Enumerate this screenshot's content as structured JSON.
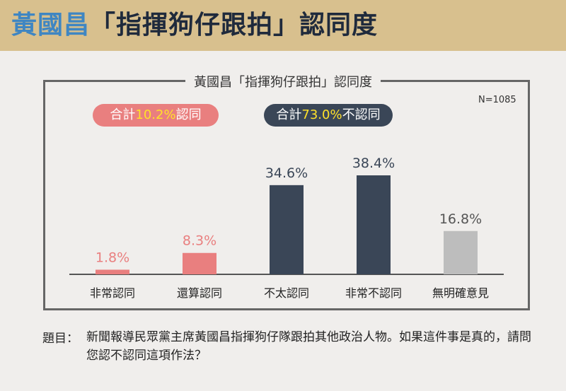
{
  "header": {
    "title_highlight": "黃國昌",
    "title_rest": "「指揮狗仔跟拍」認同度"
  },
  "chart_title": "黃國昌「指揮狗仔跟拍」認同度",
  "sample_size": "N=1085",
  "summary": {
    "agree_prefix": "合計",
    "agree_pct": "10.2%",
    "agree_suffix": "認同",
    "disagree_prefix": "合計",
    "disagree_pct": "73.0%",
    "disagree_suffix": "不認同"
  },
  "question": {
    "prefix": "題目：",
    "text": "新聞報導民眾黨主席黃國昌指揮狗仔隊跟拍其他政治人物。如果這件事是真的，請問您認不認同這項作法？"
  },
  "colors": {
    "agree": "#e97f7f",
    "disagree": "#3a4657",
    "neutral": "#bdbdbd",
    "header_bg": "#d8c08e",
    "title_highlight": "#3f86c2"
  },
  "chart_data": {
    "type": "bar",
    "title": "黃國昌「指揮狗仔跟拍」認同度",
    "categories": [
      "非常認同",
      "還算認同",
      "不太認同",
      "非常不認同",
      "無明確意見"
    ],
    "values": [
      1.8,
      8.3,
      34.6,
      38.4,
      16.8
    ],
    "value_labels": [
      "1.8%",
      "8.3%",
      "34.6%",
      "38.4%",
      "16.8%"
    ],
    "bar_colors": [
      "#e97f7f",
      "#e97f7f",
      "#3a4657",
      "#3a4657",
      "#bdbdbd"
    ],
    "label_colors": [
      "#e97f7f",
      "#e97f7f",
      "#3a4657",
      "#3a4657",
      "#555555"
    ],
    "ylim": [
      0,
      38.4
    ],
    "grid": false
  }
}
